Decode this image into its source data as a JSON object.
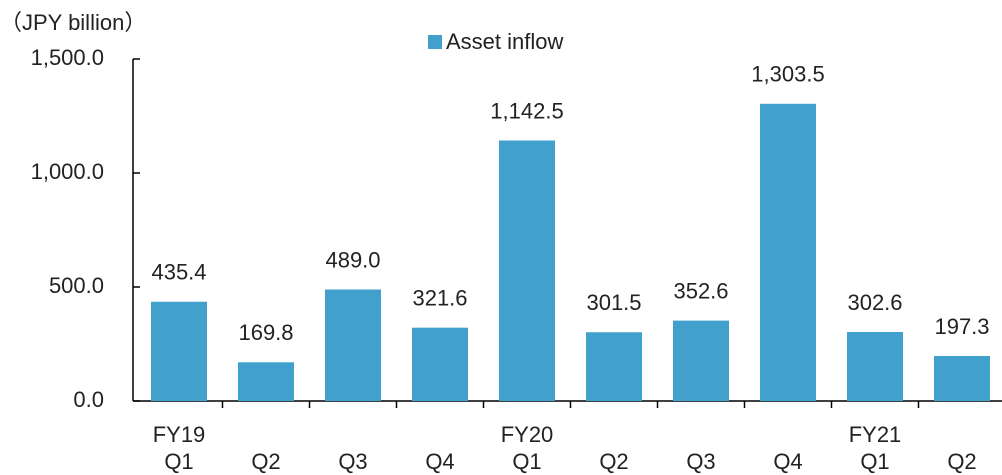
{
  "chart_data": {
    "type": "bar",
    "y_axis_label": "（JPY billion）",
    "categories": [
      "Q1",
      "Q2",
      "Q3",
      "Q4",
      "Q1",
      "Q2",
      "Q3",
      "Q4",
      "Q1",
      "Q2"
    ],
    "category_groups": [
      {
        "label": "FY19",
        "start": 0
      },
      {
        "label": "FY20",
        "start": 4
      },
      {
        "label": "FY21",
        "start": 8
      }
    ],
    "series": [
      {
        "name": "Asset inflow",
        "color": "#41a0cc",
        "values": [
          435.4,
          169.8,
          489.0,
          321.6,
          1142.5,
          301.5,
          352.6,
          1303.5,
          302.6,
          197.3
        ],
        "value_labels": [
          "435.4",
          "169.8",
          "489.0",
          "321.6",
          "1,142.5",
          "301.5",
          "352.6",
          "1,303.5",
          "302.6",
          "197.3"
        ]
      }
    ],
    "ylim": [
      0,
      1500
    ],
    "yticks": [
      {
        "value": 0,
        "label": "0.0"
      },
      {
        "value": 500,
        "label": "500.0"
      },
      {
        "value": 1000,
        "label": "1,000.0"
      },
      {
        "value": 1500,
        "label": "1,500.0"
      }
    ],
    "legend": "top"
  }
}
